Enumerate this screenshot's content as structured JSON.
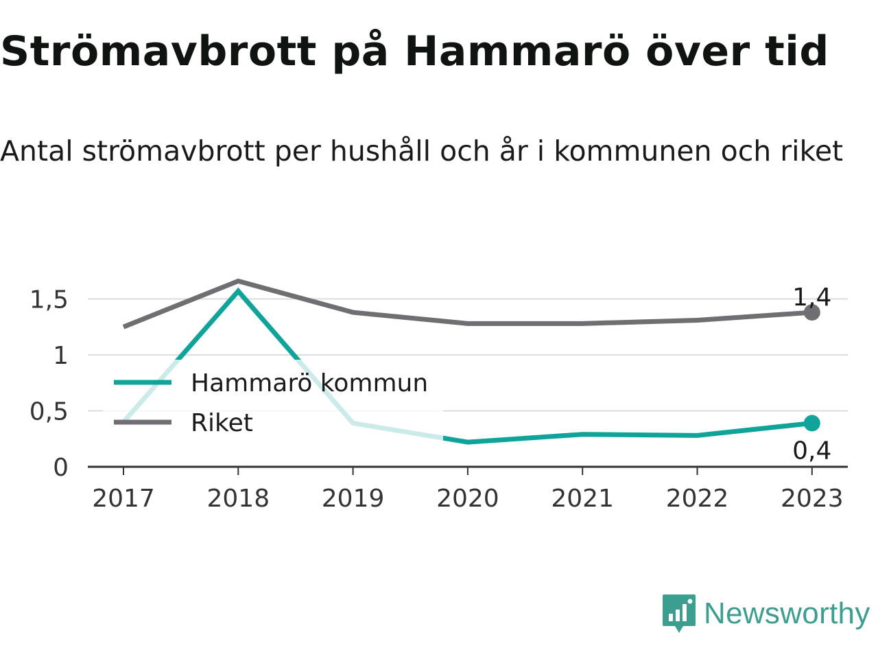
{
  "header": {
    "title": "Strömavbrott på Hammarö över tid",
    "subtitle": "Antal strömavbrott per hushåll och år i kommunen och riket"
  },
  "brand": {
    "name": "Newsworthy",
    "icon": "newsworthy-logo-icon",
    "color": "#3b9e8f"
  },
  "chart_data": {
    "type": "line",
    "title": "Strömavbrott på Hammarö över tid",
    "subtitle": "Antal strömavbrott per hushåll och år i kommunen och riket",
    "x": [
      "2017",
      "2018",
      "2019",
      "2020",
      "2021",
      "2022",
      "2023"
    ],
    "ylim": [
      0,
      1.75
    ],
    "yticks": [
      0,
      0.5,
      1,
      1.5
    ],
    "ytick_labels": [
      "0",
      "0,5",
      "1",
      "1,5"
    ],
    "grid": true,
    "legend_position": "left",
    "series": [
      {
        "name": "Hammarö kommun",
        "color": "#10a39a",
        "values": [
          0.4,
          1.57,
          0.39,
          0.22,
          0.29,
          0.28,
          0.39
        ],
        "end_label": "0,4"
      },
      {
        "name": "Riket",
        "color": "#6e6e73",
        "values": [
          1.25,
          1.66,
          1.38,
          1.28,
          1.28,
          1.31,
          1.38
        ],
        "end_label": "1,4"
      }
    ]
  }
}
